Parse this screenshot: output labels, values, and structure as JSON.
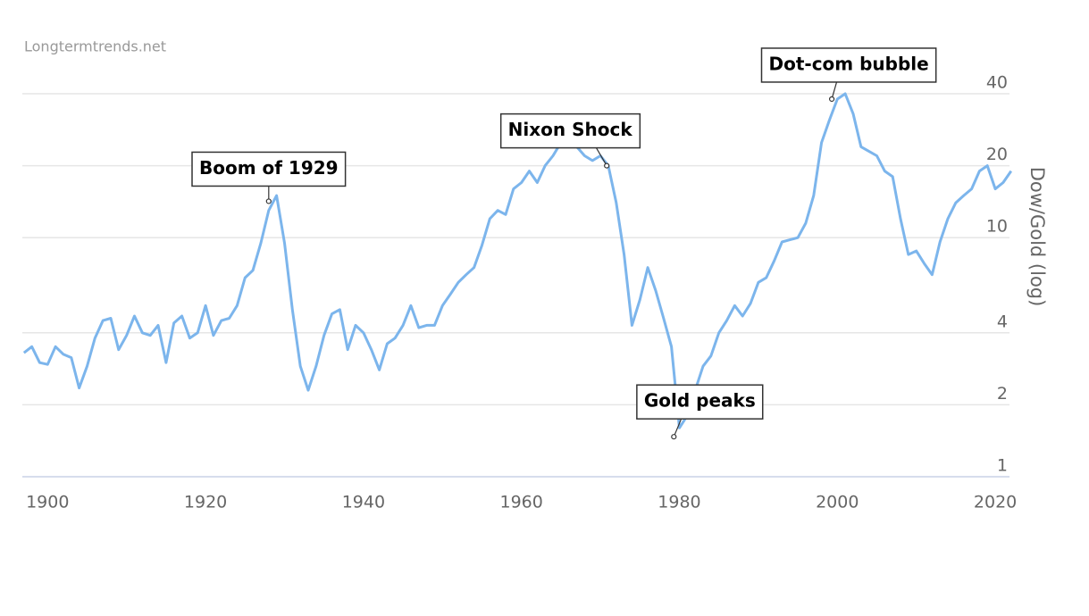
{
  "chart_data": {
    "type": "line",
    "credit": "Longtermtrends.net",
    "y_axis_label": "Dow/Gold (log)",
    "log_y": true,
    "grid": true,
    "color": "#7cb5ec",
    "x": [
      1897,
      1898,
      1899,
      1900,
      1901,
      1902,
      1903,
      1904,
      1905,
      1906,
      1907,
      1908,
      1909,
      1910,
      1911,
      1912,
      1913,
      1914,
      1915,
      1916,
      1917,
      1918,
      1919,
      1920,
      1921,
      1922,
      1923,
      1924,
      1925,
      1926,
      1927,
      1928,
      1929,
      1930,
      1931,
      1932,
      1933,
      1934,
      1935,
      1936,
      1937,
      1938,
      1939,
      1940,
      1941,
      1942,
      1943,
      1944,
      1945,
      1946,
      1947,
      1948,
      1949,
      1950,
      1951,
      1952,
      1953,
      1954,
      1955,
      1956,
      1957,
      1958,
      1959,
      1960,
      1961,
      1962,
      1963,
      1964,
      1965,
      1966,
      1967,
      1968,
      1969,
      1970,
      1971,
      1972,
      1973,
      1974,
      1975,
      1976,
      1977,
      1978,
      1979,
      1980,
      1981,
      1982,
      1983,
      1984,
      1985,
      1986,
      1987,
      1988,
      1989,
      1990,
      1991,
      1992,
      1993,
      1994,
      1995,
      1996,
      1997,
      1998,
      1999,
      2000,
      2001,
      2002,
      2003,
      2004,
      2005,
      2006,
      2007,
      2008,
      2009,
      2010,
      2011,
      2012,
      2013,
      2014,
      2015,
      2016,
      2017,
      2018,
      2019,
      2020,
      2021,
      2022
    ],
    "values": [
      3.3,
      3.5,
      3.0,
      2.95,
      3.5,
      3.25,
      3.15,
      2.35,
      2.9,
      3.8,
      4.5,
      4.6,
      3.4,
      3.9,
      4.7,
      4.0,
      3.9,
      4.3,
      3.0,
      4.4,
      4.7,
      3.8,
      4.0,
      5.2,
      3.9,
      4.5,
      4.6,
      5.2,
      6.8,
      7.3,
      9.5,
      13,
      15,
      9.5,
      5.0,
      2.9,
      2.3,
      2.9,
      3.9,
      4.8,
      5.0,
      3.4,
      4.3,
      4.0,
      3.4,
      2.8,
      3.6,
      3.8,
      4.3,
      5.2,
      4.2,
      4.3,
      4.3,
      5.2,
      5.8,
      6.5,
      7.0,
      7.5,
      9.3,
      12,
      13,
      12.5,
      16,
      17,
      19,
      17,
      20,
      22,
      25,
      24,
      24,
      22,
      21,
      22,
      20,
      14,
      8.5,
      4.3,
      5.5,
      7.5,
      6.0,
      4.6,
      3.5,
      1.6,
      1.8,
      2.3,
      2.9,
      3.2,
      4.0,
      4.5,
      5.2,
      4.7,
      5.3,
      6.5,
      6.8,
      8.0,
      9.6,
      9.8,
      10,
      11.5,
      15,
      25,
      31,
      38,
      40,
      33,
      24,
      23,
      22,
      19,
      18,
      12,
      8.5,
      8.8,
      7.8,
      7.0,
      9.6,
      12,
      14,
      15,
      16,
      19,
      20,
      16,
      17,
      19
    ],
    "xlim": [
      1896.8,
      2021.8
    ],
    "xticks": [
      1900,
      1920,
      1940,
      1960,
      1980,
      2000,
      2020
    ],
    "ylim": [
      1,
      40
    ],
    "yticks": [
      1,
      2,
      4,
      10,
      20,
      40
    ],
    "annotations": [
      {
        "label": "Boom of 1929",
        "x": 1928,
        "y": 14.2
      },
      {
        "label": "Nixon Shock",
        "x": 1970.8,
        "y": 20
      },
      {
        "label": "Gold peaks",
        "x": 1979.3,
        "y": 1.47
      },
      {
        "label": "Dot-com bubble",
        "x": 1999.3,
        "y": 38
      }
    ]
  }
}
